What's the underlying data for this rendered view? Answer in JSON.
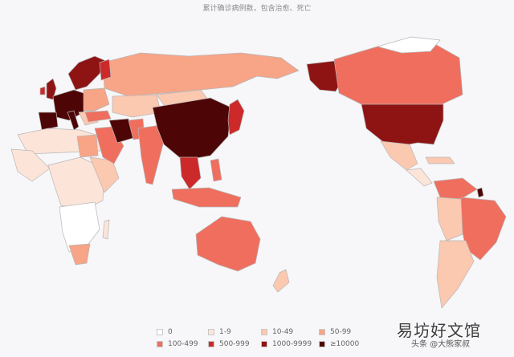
{
  "subtitle": "累计确诊病例数，包含治愈、死亡",
  "legend": [
    {
      "label": "0",
      "color": "#ffffff"
    },
    {
      "label": "1-9",
      "color": "#fde4d8"
    },
    {
      "label": "10-49",
      "color": "#fbc8b0"
    },
    {
      "label": "50-99",
      "color": "#f7a487"
    },
    {
      "label": "100-499",
      "color": "#ef6e5e"
    },
    {
      "label": "500-999",
      "color": "#cc2a2a"
    },
    {
      "label": "1000-9999",
      "color": "#8e1414"
    },
    {
      "label": "≥10000",
      "color": "#4e0505"
    }
  ],
  "watermark": {
    "text": "易坊好文馆",
    "subtext": "头条 @大熊家叔"
  }
}
